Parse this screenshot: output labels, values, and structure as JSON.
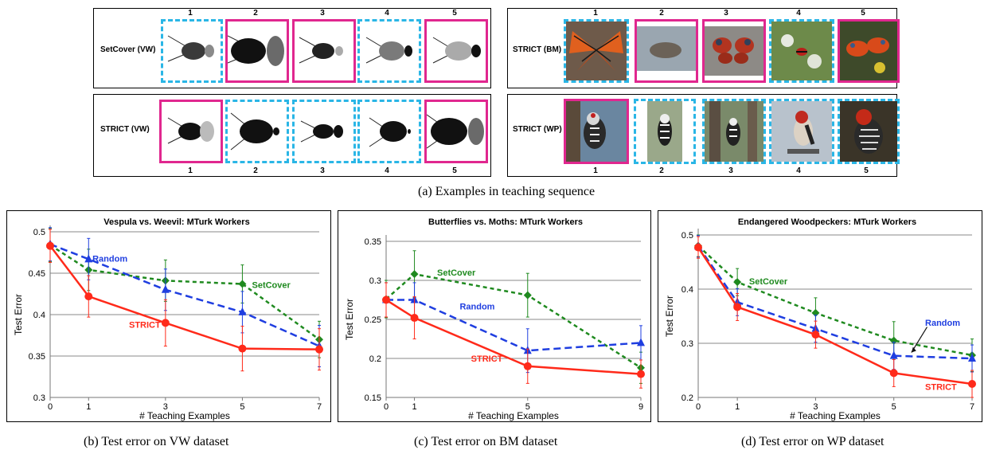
{
  "top": {
    "panels": [
      {
        "label": "SetCover (VW)",
        "numbers": [
          "1",
          "2",
          "3",
          "4",
          "5"
        ],
        "frames": [
          "blue",
          "pink",
          "pink",
          "blue",
          "pink"
        ]
      },
      {
        "label": "STRICT (VW)",
        "numbers": [
          "1",
          "2",
          "3",
          "4",
          "5"
        ],
        "frames": [
          "pink",
          "blue",
          "blue",
          "blue",
          "pink"
        ]
      },
      {
        "label": "STRICT (BM)",
        "numbers": [
          "1",
          "2",
          "3",
          "4",
          "5"
        ],
        "frames": [
          "blue",
          "pink",
          "pink",
          "blue",
          "pink"
        ]
      },
      {
        "label": "STRICT (WP)",
        "numbers": [
          "1",
          "2",
          "3",
          "4",
          "5"
        ],
        "frames": [
          "pink",
          "blue",
          "blue",
          "blue",
          "blue"
        ]
      }
    ],
    "caption": "(a)  Examples in teaching sequence"
  },
  "captions": {
    "b": "(b)  Test error on VW dataset",
    "c": "(c)  Test error on BM dataset",
    "d": "(d)  Test error on WP dataset"
  },
  "colors": {
    "pink": "#e0278f",
    "blue": "#2ab6e6",
    "strict": "#ff2a1a",
    "random": "#1f3ee0",
    "setcover": "#1f8a1f"
  },
  "chart_data": [
    {
      "type": "line",
      "title": "Vespula vs. Weevil: MTurk Workers",
      "xlabel": "# Teaching Examples",
      "ylabel": "Test Error",
      "x": [
        0,
        1,
        3,
        5,
        7
      ],
      "xticks": [
        "0",
        "1",
        "3",
        "5",
        "7"
      ],
      "ylim": [
        0.3,
        0.5
      ],
      "yticks": [
        "0.3",
        "0.35",
        "0.4",
        "0.45",
        "0.5"
      ],
      "grid": true,
      "series": [
        {
          "name": "STRICT",
          "values": [
            0.483,
            0.422,
            0.39,
            0.359,
            0.358
          ],
          "err": [
            0.02,
            0.025,
            0.028,
            0.027,
            0.025
          ]
        },
        {
          "name": "Random",
          "values": [
            0.485,
            0.467,
            0.43,
            0.403,
            0.362
          ],
          "err": [
            0.02,
            0.025,
            0.025,
            0.025,
            0.025
          ]
        },
        {
          "name": "SetCover",
          "values": [
            0.484,
            0.454,
            0.441,
            0.437,
            0.37
          ],
          "err": [
            0.02,
            0.025,
            0.025,
            0.023,
            0.022
          ]
        }
      ],
      "annotations": [
        {
          "series": "Random",
          "text": "Random",
          "x": 1.1,
          "y": 0.468
        },
        {
          "series": "SetCover",
          "text": "SetCover",
          "x": 5.25,
          "y": 0.436
        },
        {
          "series": "STRICT",
          "text": "STRICT",
          "x": 2.05,
          "y": 0.388
        }
      ]
    },
    {
      "type": "line",
      "title": "Butterflies vs. Moths: MTurk Workers",
      "xlabel": "# Teaching Examples",
      "ylabel": "Test Error",
      "x": [
        0,
        1,
        5,
        9
      ],
      "xticks": [
        "0",
        "1",
        "5",
        "9"
      ],
      "ylim": [
        0.15,
        0.35
      ],
      "yticks": [
        "0.15",
        "0.2",
        "0.25",
        "0.3",
        "0.35"
      ],
      "grid": true,
      "series": [
        {
          "name": "STRICT",
          "values": [
            0.275,
            0.252,
            0.19,
            0.18
          ],
          "err": [
            0.022,
            0.027,
            0.022,
            0.018
          ]
        },
        {
          "name": "Random",
          "values": [
            0.275,
            0.275,
            0.21,
            0.22
          ],
          "err": [
            0.022,
            0.022,
            0.028,
            0.022
          ]
        },
        {
          "name": "SetCover",
          "values": [
            0.276,
            0.308,
            0.281,
            0.188
          ],
          "err": [
            0.024,
            0.03,
            0.028,
            0.02
          ]
        }
      ],
      "annotations": [
        {
          "series": "SetCover",
          "text": "SetCover",
          "x": 1.8,
          "y": 0.31
        },
        {
          "series": "Random",
          "text": "Random",
          "x": 2.6,
          "y": 0.267
        },
        {
          "series": "STRICT",
          "text": "STRICT",
          "x": 3.0,
          "y": 0.2
        }
      ]
    },
    {
      "type": "line",
      "title": "Endangered Woodpeckers: MTurk Workers",
      "xlabel": "# Teaching Examples",
      "ylabel": "Test Error",
      "x": [
        0,
        1,
        3,
        5,
        7
      ],
      "xticks": [
        "0",
        "1",
        "3",
        "5",
        "7"
      ],
      "ylim": [
        0.2,
        0.5
      ],
      "yticks": [
        "0.2",
        "0.3",
        "0.4",
        "0.5"
      ],
      "grid": true,
      "series": [
        {
          "name": "STRICT",
          "values": [
            0.477,
            0.367,
            0.316,
            0.245,
            0.225
          ],
          "err": [
            0.02,
            0.025,
            0.025,
            0.025,
            0.025
          ]
        },
        {
          "name": "Random",
          "values": [
            0.479,
            0.376,
            0.327,
            0.277,
            0.272
          ],
          "err": [
            0.02,
            0.025,
            0.025,
            0.025,
            0.025
          ]
        },
        {
          "name": "SetCover",
          "values": [
            0.48,
            0.413,
            0.356,
            0.305,
            0.278
          ],
          "err": [
            0.02,
            0.025,
            0.028,
            0.035,
            0.03
          ]
        }
      ],
      "annotations": [
        {
          "series": "SetCover",
          "text": "SetCover",
          "x": 1.3,
          "y": 0.415
        },
        {
          "series": "Random",
          "text": "Random",
          "x": 5.8,
          "y": 0.338
        },
        {
          "series": "STRICT",
          "text": "STRICT",
          "x": 5.8,
          "y": 0.22
        }
      ]
    }
  ]
}
